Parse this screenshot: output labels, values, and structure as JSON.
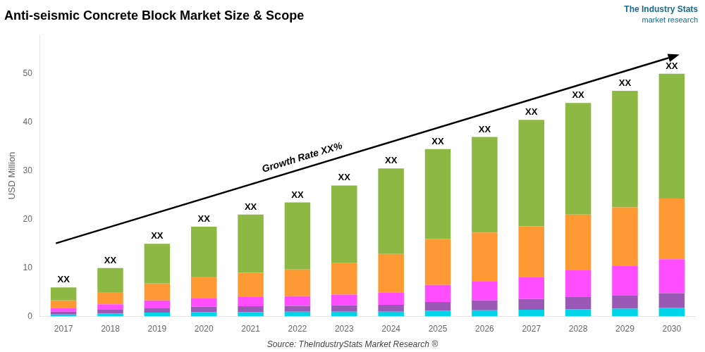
{
  "chart_data": {
    "type": "bar",
    "title": "Anti-seismic Concrete Block Market Size & Scope",
    "ylabel": "USD Million",
    "source": "Source: TheIndustryStats Market Research ®",
    "categories": [
      "2017",
      "2018",
      "2019",
      "2020",
      "2021",
      "2022",
      "2023",
      "2024",
      "2025",
      "2026",
      "2027",
      "2028",
      "2029",
      "2030"
    ],
    "series": [
      {
        "color": "#00d4e8",
        "values": [
          0.4,
          0.6,
          0.8,
          0.9,
          0.9,
          1.0,
          1.0,
          1.0,
          1.2,
          1.3,
          1.4,
          1.5,
          1.6,
          1.8
        ]
      },
      {
        "color": "#9b59b6",
        "values": [
          0.6,
          0.8,
          1.0,
          1.1,
          1.2,
          1.2,
          1.3,
          1.4,
          1.8,
          2.0,
          2.2,
          2.5,
          2.7,
          3.0
        ]
      },
      {
        "color": "#ff4dff",
        "values": [
          0.8,
          1.1,
          1.5,
          1.7,
          1.9,
          2.0,
          2.2,
          2.5,
          3.5,
          4.0,
          4.5,
          5.5,
          6.2,
          7.0
        ]
      },
      {
        "color": "#ff9933",
        "values": [
          1.5,
          2.5,
          3.5,
          4.5,
          5.0,
          5.5,
          6.5,
          8.0,
          9.5,
          10.0,
          10.5,
          11.5,
          12.0,
          12.5
        ]
      },
      {
        "color": "#8db843",
        "values": [
          2.7,
          5.0,
          8.2,
          10.3,
          12.0,
          13.8,
          16.0,
          17.6,
          18.5,
          19.7,
          21.9,
          23.0,
          24.0,
          25.7
        ]
      }
    ],
    "stacked": true,
    "ylim": [
      0,
      58
    ],
    "yticks": [
      0,
      10,
      20,
      30,
      40,
      50
    ],
    "grid": false,
    "annotations": [
      {
        "text": "XX",
        "category": "2017"
      },
      {
        "text": "XX",
        "category": "2018"
      },
      {
        "text": "XX",
        "category": "2019"
      },
      {
        "text": "XX",
        "category": "2020"
      },
      {
        "text": "XX",
        "category": "2021"
      },
      {
        "text": "XX",
        "category": "2022"
      },
      {
        "text": "XX",
        "category": "2023"
      },
      {
        "text": "XX",
        "category": "2024"
      },
      {
        "text": "XX",
        "category": "2025"
      },
      {
        "text": "XX",
        "category": "2026"
      },
      {
        "text": "XX",
        "category": "2027"
      },
      {
        "text": "XX",
        "category": "2028"
      },
      {
        "text": "XX",
        "category": "2029"
      },
      {
        "text": "XX",
        "category": "2030"
      },
      {
        "text": "Growth Rate XX%",
        "arrow": true
      },
      {
        "text": "The Industry Stats",
        "color": "#1a6b8a"
      },
      {
        "text": "market research",
        "color": "#1a6b8a"
      }
    ]
  }
}
